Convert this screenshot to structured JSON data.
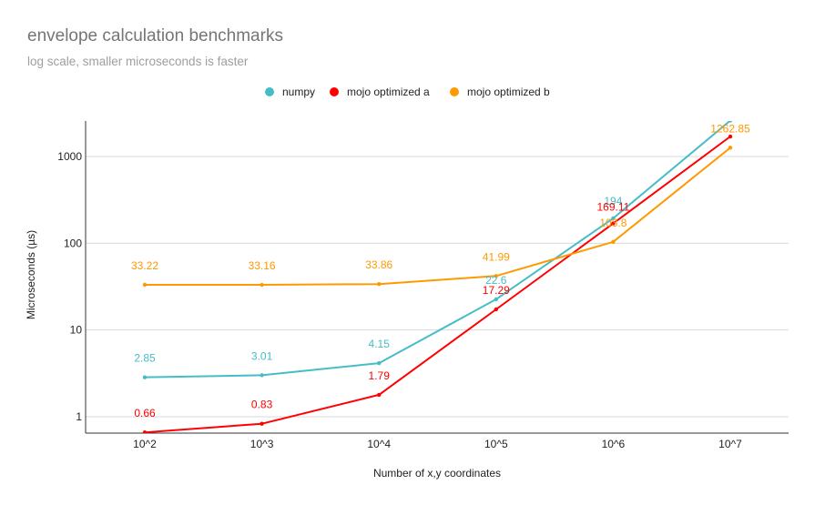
{
  "title": "envelope calculation benchmarks",
  "subtitle": "log scale, smaller microseconds is faster",
  "chart_data": {
    "type": "line",
    "title": "envelope calculation benchmarks",
    "subtitle": "log scale, smaller microseconds is faster",
    "xlabel": "Number of x,y coordinates",
    "ylabel": "Microseconds (µs)",
    "yscale": "log",
    "ylim": [
      0.6,
      2600
    ],
    "yticks": [
      1,
      10,
      100,
      1000
    ],
    "ytick_labels": [
      "1",
      "10",
      "100",
      "1000"
    ],
    "categories": [
      "10^2",
      "10^3",
      "10^4",
      "10^5",
      "10^6",
      "10^7"
    ],
    "grid": true,
    "legend_position": "top",
    "series": [
      {
        "name": "numpy",
        "color": "#46bdc6",
        "values": [
          2.85,
          3.01,
          4.15,
          22.6,
          194,
          2600
        ],
        "labels": [
          "2.85",
          "3.01",
          "4.15",
          "22.6",
          "194",
          ""
        ]
      },
      {
        "name": "mojo optimized a",
        "color": "#ff0000",
        "values": [
          0.66,
          0.83,
          1.79,
          17.29,
          169.11,
          1700
        ],
        "labels": [
          "0.66",
          "0.83",
          "1.79",
          "17.29",
          "169.11",
          ""
        ]
      },
      {
        "name": "mojo optimized b",
        "color": "#ff9900",
        "values": [
          33.22,
          33.16,
          33.86,
          41.99,
          103.8,
          1262.85
        ],
        "labels": [
          "33.22",
          "33.16",
          "33.86",
          "41.99",
          "103.8",
          "1262.85"
        ]
      }
    ]
  }
}
